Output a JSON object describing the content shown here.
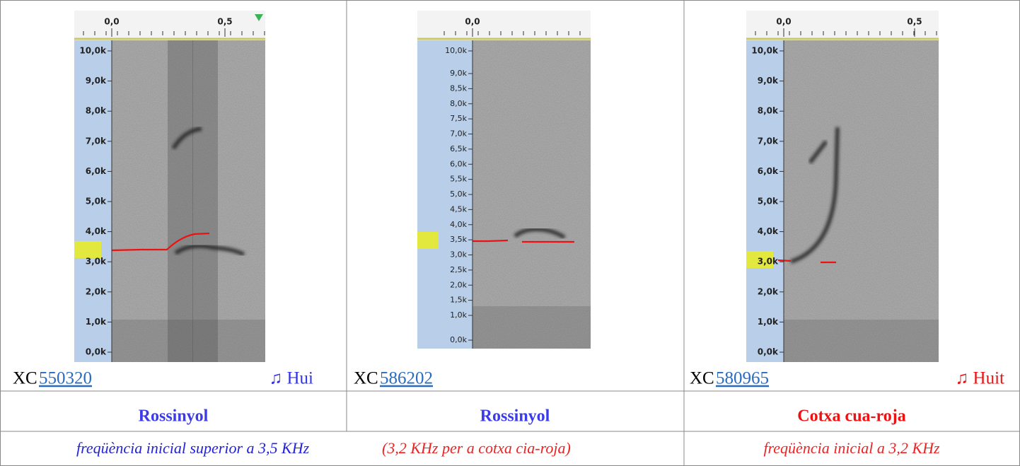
{
  "cells": [
    {
      "time_ticks": [
        "0,0",
        "0,5"
      ],
      "freq_ticks": [
        "10,0k",
        "9,0k",
        "8,0k",
        "7,0k",
        "6,0k",
        "5,0k",
        "4,0k",
        "3,0k",
        "2,0k",
        "1,0k",
        "0,0k"
      ],
      "xc_prefix": "XC",
      "xc_id": "550320",
      "sound": "♫  Hui",
      "species": "Rossinyol"
    },
    {
      "time_ticks": [
        "0,0"
      ],
      "freq_ticks": [
        "10,0k",
        "9,0k",
        "8,5k",
        "8,0k",
        "7,5k",
        "7,0k",
        "6,5k",
        "6,0k",
        "5,5k",
        "5,0k",
        "4,5k",
        "4,0k",
        "3,5k",
        "3,0k",
        "2,5k",
        "2,0k",
        "1,5k",
        "1,0k",
        "0,0k"
      ],
      "xc_prefix": "XC",
      "xc_id": "586202",
      "species": "Rossinyol"
    },
    {
      "time_ticks": [
        "0,0",
        "0,5"
      ],
      "freq_ticks": [
        "10,0k",
        "9,0k",
        "8,0k",
        "7,0k",
        "6,0k",
        "5,0k",
        "4,0k",
        "3,0k",
        "2,0k",
        "1,0k",
        "0,0k"
      ],
      "xc_prefix": "XC",
      "xc_id": "580965",
      "sound": "♫ Huit",
      "species": "Cotxa cua-roja"
    }
  ],
  "notes": [
    "freqüència inicial superior a 3,5  KHz",
    "(3,2 KHz per a cotxa cia-roja)",
    "freqüència inicial a 3,2 KHz"
  ]
}
